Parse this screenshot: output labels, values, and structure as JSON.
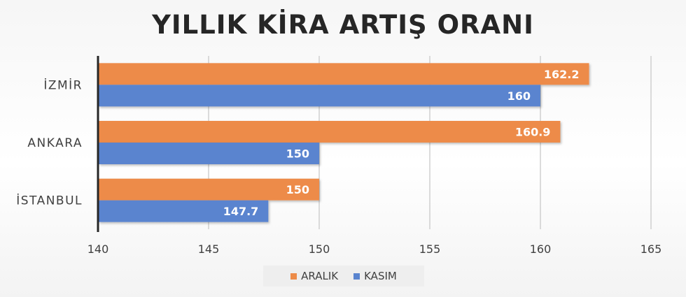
{
  "chart_data": {
    "type": "bar",
    "orientation": "horizontal",
    "title": "YILLIK KİRA ARTIŞ ORANI",
    "categories": [
      "İZMİR",
      "ANKARA",
      "İSTANBUL"
    ],
    "series": [
      {
        "name": "ARALIK",
        "color": "#ed8b48",
        "values": [
          162.2,
          160.9,
          150
        ]
      },
      {
        "name": "KASIM",
        "color": "#5a84cf",
        "values": [
          160,
          150,
          147.7
        ]
      }
    ],
    "xlim": [
      140,
      165
    ],
    "x_ticks": [
      140,
      145,
      150,
      155,
      160,
      165
    ],
    "xlabel": "",
    "ylabel": "",
    "grid": true,
    "legend_position": "bottom",
    "data_labels": true
  }
}
